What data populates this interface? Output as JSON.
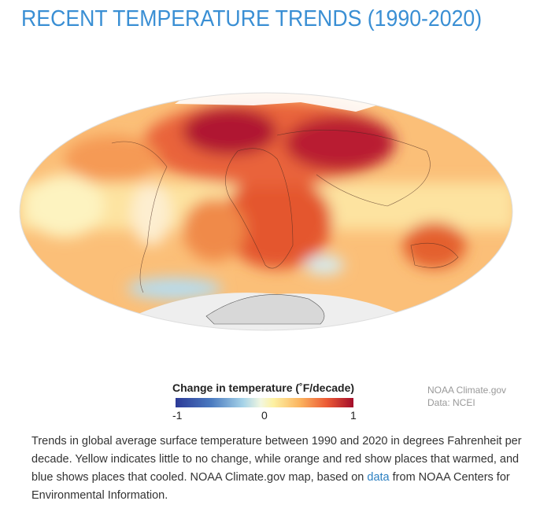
{
  "title": "RECENT TEMPERATURE TRENDS (1990-2020)",
  "legend": {
    "title": "Change in temperature (˚F/decade)",
    "min_label": "-1",
    "mid_label": "0",
    "max_label": "1",
    "range": [
      -1,
      1
    ],
    "colors": [
      "#2c3a97",
      "#a6d3e8",
      "#fdf1a2",
      "#ec5a35",
      "#a30d2a"
    ]
  },
  "credit": {
    "line1": "NOAA Climate.gov",
    "line2": "Data: NCEI"
  },
  "caption": {
    "before": "Trends in global average surface temperature between 1990 and 2020 in degrees Fahrenheit per decade. Yellow indicates little to no change, while orange and red show places that warmed, and blue shows places that cooled. NOAA Climate.gov map, based on ",
    "link": "data",
    "after": " from NOAA Centers for Environmental Information."
  }
}
